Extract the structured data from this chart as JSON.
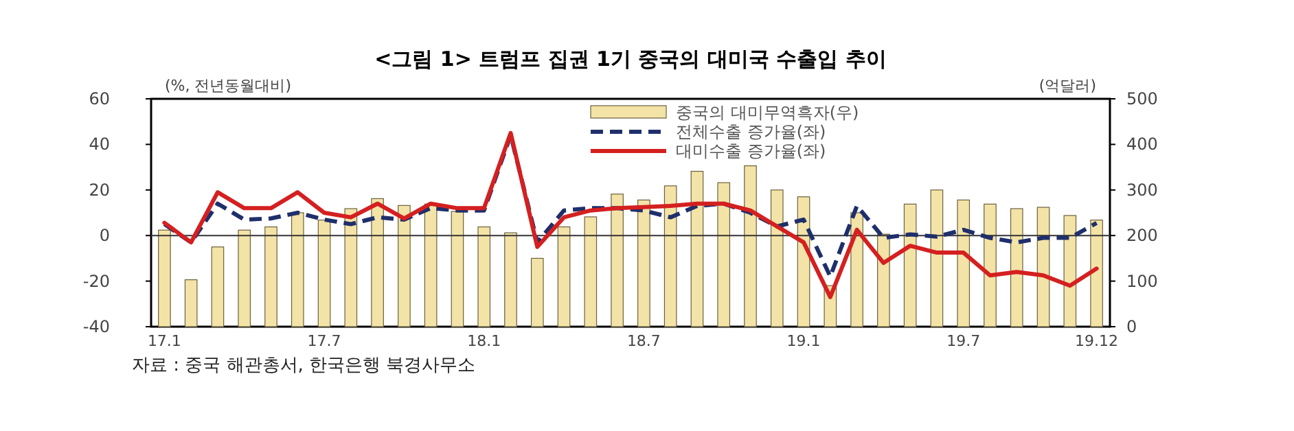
{
  "chart_data": {
    "type": "bar",
    "title": "<그림 1> 트럼프 집권 1기 중국의 대미국 수출입 추이",
    "ylabel": "(%, 전년동월대비)",
    "y2label": "(억달러)",
    "categories": [
      "17.1",
      null,
      null,
      null,
      null,
      null,
      "17.7",
      null,
      null,
      null,
      null,
      null,
      "18.1",
      null,
      null,
      null,
      null,
      null,
      "18.7",
      null,
      null,
      null,
      null,
      null,
      "19.1",
      null,
      null,
      null,
      null,
      null,
      "19.7",
      null,
      null,
      null,
      null,
      "19.12"
    ],
    "series": [
      {
        "name": "중국의 대미무역흑자(우)",
        "axis": "y2",
        "color": "#f3e3a6",
        "values": [
          212,
          103,
          175,
          212,
          219,
          250,
          234,
          259,
          281,
          266,
          269,
          253,
          219,
          206,
          150,
          219,
          241,
          291,
          278,
          309,
          341,
          316,
          353,
          300,
          285,
          90,
          250,
          203,
          269,
          300,
          278,
          269,
          259,
          262,
          244,
          234
        ]
      },
      {
        "name": "전체수출 증가율(좌)",
        "type": "line",
        "axis": "y",
        "color": "#1f2f6b",
        "line_style": "dashed",
        "values": [
          5,
          -3,
          14,
          7,
          7.5,
          10,
          7,
          5,
          8,
          7,
          12,
          11,
          11,
          44,
          -3,
          11,
          12,
          12,
          11,
          8,
          13,
          14,
          10,
          4,
          7,
          -18,
          13,
          -1,
          0.5,
          -0.5,
          2.5,
          -1,
          -3,
          -1,
          -1,
          5.5
        ]
      },
      {
        "name": "대미수출 증가율(좌)",
        "type": "line",
        "axis": "y",
        "color": "#d42020",
        "line_style": "solid",
        "values": [
          5.6,
          -3,
          19,
          12,
          12,
          19,
          10,
          8,
          14,
          7.5,
          14,
          12,
          12,
          45,
          -5,
          8,
          11,
          12,
          12.5,
          13,
          14,
          14,
          11,
          4,
          -3,
          -27,
          2.5,
          -12,
          -4.5,
          -7.5,
          -7.5,
          -17.5,
          -16,
          -17.5,
          -22,
          -14.5
        ]
      }
    ],
    "ylim": [
      -40,
      60
    ],
    "yticks": [
      -40,
      -20,
      0,
      20,
      40,
      60
    ],
    "y2lim": [
      0,
      500
    ],
    "y2ticks": [
      0,
      100,
      200,
      300,
      400,
      500
    ],
    "ref_lines": [
      {
        "axis": "y",
        "value": 0,
        "color": "#333333"
      }
    ],
    "grid": false,
    "legend": "top right",
    "marker": "none",
    "annotations": [
      "자료 : 중국 해관총서, 한국은행 북경사무소"
    ]
  }
}
